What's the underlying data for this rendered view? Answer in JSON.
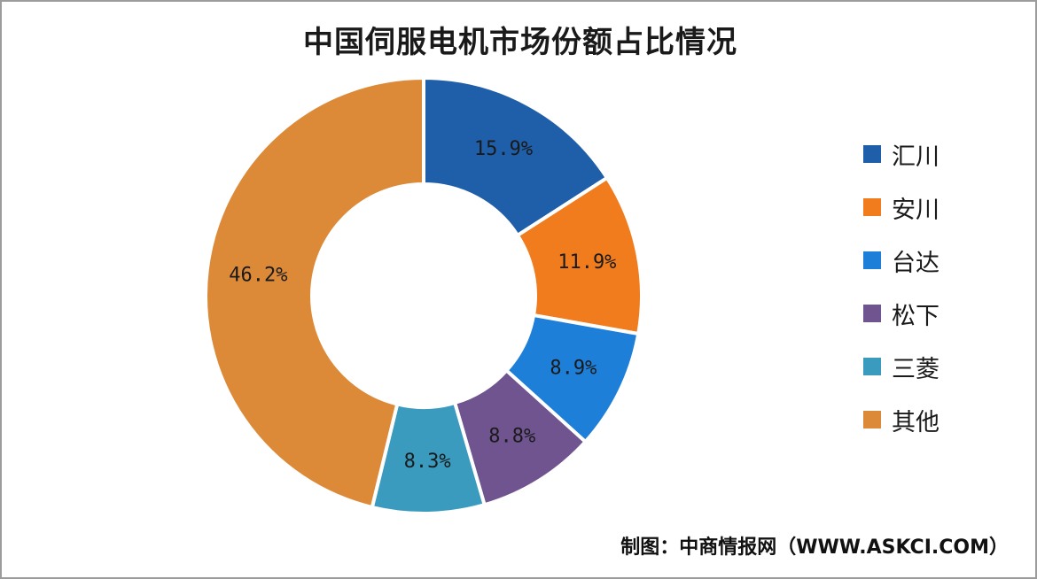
{
  "chart_data": {
    "type": "pie",
    "variant": "donut",
    "title": "中国伺服电机市场份额占比情况",
    "categories": [
      "汇川",
      "安川",
      "台达",
      "松下",
      "三菱",
      "其他"
    ],
    "values": [
      15.9,
      11.9,
      8.9,
      8.8,
      8.3,
      46.2
    ],
    "value_labels": [
      "15.9%",
      "11.9%",
      "8.9%",
      "8.8%",
      "8.3%",
      "46.2%"
    ],
    "colors": [
      "#1f5ea8",
      "#f07c1e",
      "#1e7fd9",
      "#6f548f",
      "#3a9bbf",
      "#dc8a38"
    ],
    "legend_position": "right"
  },
  "source_text": "制图：中商情报网（WWW.ASKCI.COM）"
}
